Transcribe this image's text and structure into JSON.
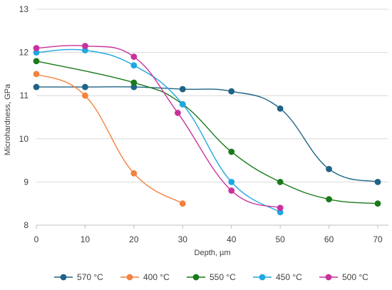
{
  "chart_data": {
    "type": "line",
    "title": "",
    "xlabel": "Depth, µm",
    "ylabel": "Microhardness, GPa",
    "xlim": [
      0,
      70
    ],
    "ylim": [
      8,
      13
    ],
    "x_ticks": [
      "0",
      "10",
      "20",
      "30",
      "40",
      "50",
      "60",
      "70"
    ],
    "y_ticks": [
      "8",
      "9",
      "10",
      "11",
      "12",
      "13"
    ],
    "grid": "horizontal",
    "legend_position": "bottom",
    "smooth": true,
    "series": [
      {
        "name": "570 °C",
        "color": "#1f6386",
        "x": [
          0,
          10,
          20,
          30,
          40,
          50,
          60,
          70
        ],
        "y": [
          11.2,
          11.2,
          11.2,
          11.15,
          11.1,
          10.7,
          9.3,
          9.0
        ]
      },
      {
        "name": "400 °C",
        "color": "#f4813e",
        "x": [
          0,
          10,
          20,
          30
        ],
        "y": [
          11.5,
          11.0,
          9.2,
          8.5
        ]
      },
      {
        "name": "550 °C",
        "color": "#1a7a1a",
        "x": [
          0,
          20,
          30,
          40,
          50,
          60,
          70
        ],
        "y": [
          11.8,
          11.3,
          10.8,
          9.7,
          9.0,
          8.6,
          8.5
        ]
      },
      {
        "name": "450 °C",
        "color": "#1ea8e0",
        "x": [
          0,
          10,
          20,
          30,
          40,
          50
        ],
        "y": [
          12.0,
          12.05,
          11.7,
          10.8,
          9.0,
          8.3
        ]
      },
      {
        "name": "500 °C",
        "color": "#c8329c",
        "x": [
          0,
          10,
          20,
          29,
          40,
          50
        ],
        "y": [
          12.1,
          12.15,
          11.9,
          10.6,
          8.8,
          8.4
        ]
      }
    ]
  }
}
